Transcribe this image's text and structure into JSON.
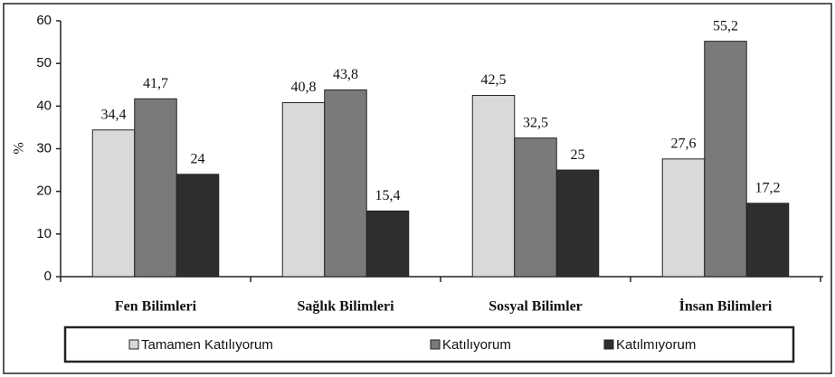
{
  "chart_data": {
    "type": "bar",
    "ylabel": "%",
    "categories": [
      "Fen Bilimleri",
      "Sağlık Bilimleri",
      "Sosyal Bilimler",
      "İnsan Bilimleri"
    ],
    "series": [
      {
        "name": "Tamamen Katılıyorum",
        "color": "#d9d9d9",
        "values": [
          34.4,
          40.8,
          42.5,
          27.6
        ],
        "value_labels": [
          "34,4",
          "40,8",
          "42,5",
          "27,6"
        ]
      },
      {
        "name": "Katılıyorum",
        "color": "#7a7a7a",
        "values": [
          41.7,
          43.8,
          32.5,
          55.2
        ],
        "value_labels": [
          "41,7",
          "43,8",
          "32,5",
          "55,2"
        ]
      },
      {
        "name": "Katılmıyorum",
        "color": "#2e2e2e",
        "values": [
          24,
          15.4,
          25,
          17.2
        ],
        "value_labels": [
          "24",
          "15,4",
          "25",
          "17,2"
        ]
      }
    ],
    "ylim": [
      0,
      60
    ],
    "yticks": [
      0,
      10,
      20,
      30,
      40,
      50,
      60
    ],
    "grid": false,
    "legend": "bottom"
  }
}
